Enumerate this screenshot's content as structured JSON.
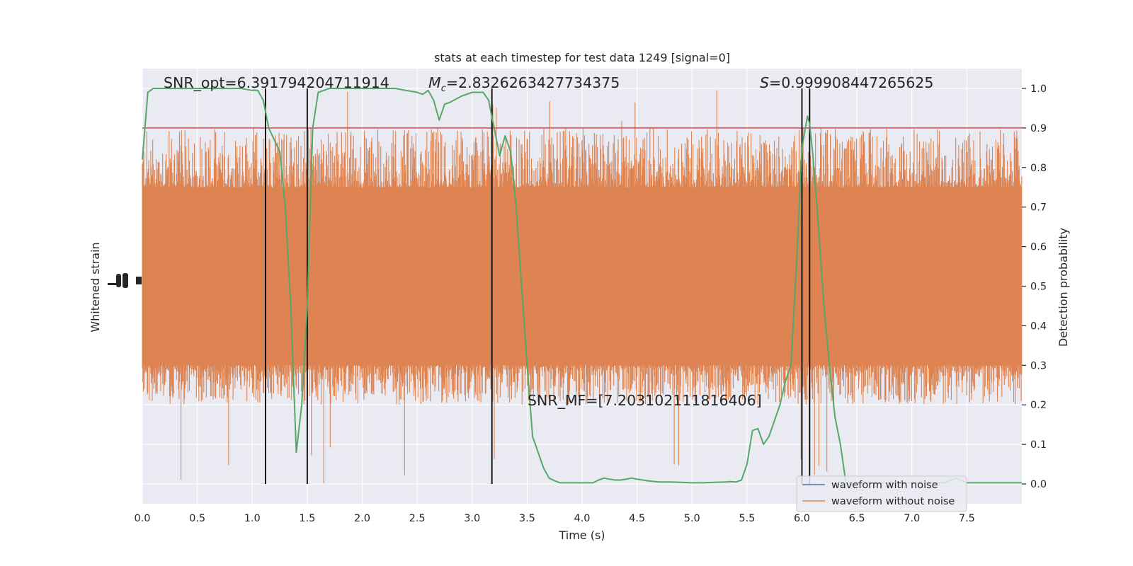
{
  "chart_data": {
    "type": "line",
    "title": "stats at each timestep for test data 1249 [signal=0]",
    "xlabel": "Time (s)",
    "ylabel_left": "Whitened strain",
    "ylabel_right": "Detection probability",
    "xlim": [
      0,
      8
    ],
    "ylim_right": [
      -0.05,
      1.05
    ],
    "grid": true,
    "x_ticks": [
      0.0,
      0.5,
      1.0,
      1.5,
      2.0,
      2.5,
      3.0,
      3.5,
      4.0,
      4.5,
      5.0,
      5.5,
      6.0,
      6.5,
      7.0,
      7.5
    ],
    "x_tick_labels": [
      "0.0",
      "0.5",
      "1.0",
      "1.5",
      "2.0",
      "2.5",
      "3.0",
      "3.5",
      "4.0",
      "4.5",
      "5.0",
      "5.5",
      "6.0",
      "6.5",
      "7.0",
      "7.5"
    ],
    "y_right_ticks": [
      0.0,
      0.1,
      0.2,
      0.3,
      0.4,
      0.5,
      0.6,
      0.7,
      0.8,
      0.9,
      1.0
    ],
    "y_right_tick_labels": [
      "0.0",
      "0.1",
      "0.2",
      "0.3",
      "0.4",
      "0.5",
      "0.6",
      "0.7",
      "0.8",
      "0.9",
      "1.0"
    ],
    "threshold": 0.9,
    "event_lines_x": [
      1.12,
      1.5,
      3.18,
      6.0,
      6.07
    ],
    "annotations": {
      "snr_opt": "SNR_opt=6.391794204711914",
      "mc_symbol": "M",
      "mc_sub": "c",
      "mc_value": "=2.8326263427734375",
      "s_symbol": "S",
      "s_value": "=0.999908447265625",
      "snr_mf": "SNR_MF=[7.203102111816406]"
    },
    "series": [
      {
        "name": "waveform with noise",
        "color": "#4c72b0",
        "description_only": true
      },
      {
        "name": "waveform without noise",
        "color": "#dd8452",
        "noise_band_prob": [
          0.3,
          0.75
        ],
        "typical_spike_range_prob": [
          0.2,
          0.9
        ]
      },
      {
        "name": "detection probability",
        "color": "#55a868",
        "x": [
          0.0,
          0.05,
          0.1,
          0.15,
          0.2,
          0.3,
          0.4,
          0.5,
          0.6,
          0.7,
          0.8,
          0.9,
          1.0,
          1.05,
          1.1,
          1.15,
          1.2,
          1.25,
          1.3,
          1.35,
          1.4,
          1.45,
          1.5,
          1.55,
          1.6,
          1.65,
          1.7,
          1.8,
          1.9,
          2.0,
          2.1,
          2.2,
          2.3,
          2.4,
          2.5,
          2.55,
          2.6,
          2.65,
          2.7,
          2.75,
          2.8,
          2.9,
          3.0,
          3.1,
          3.15,
          3.2,
          3.25,
          3.3,
          3.35,
          3.4,
          3.45,
          3.5,
          3.55,
          3.6,
          3.65,
          3.7,
          3.75,
          3.8,
          3.9,
          4.0,
          4.1,
          4.15,
          4.2,
          4.25,
          4.3,
          4.35,
          4.4,
          4.45,
          4.5,
          4.6,
          4.7,
          4.8,
          4.9,
          5.0,
          5.1,
          5.2,
          5.3,
          5.35,
          5.4,
          5.45,
          5.5,
          5.55,
          5.6,
          5.65,
          5.7,
          5.75,
          5.8,
          5.85,
          5.9,
          5.95,
          6.0,
          6.05,
          6.07,
          6.1,
          6.15,
          6.2,
          6.25,
          6.3,
          6.35,
          6.4,
          6.5,
          6.6,
          6.7,
          6.8,
          6.9,
          7.0,
          7.1,
          7.2,
          7.3,
          7.4,
          7.5,
          7.6,
          7.7,
          7.8,
          7.9,
          8.0
        ],
        "values": [
          0.82,
          0.99,
          1.0,
          1.0,
          1.0,
          1.0,
          1.0,
          1.0,
          1.0,
          1.0,
          1.0,
          1.0,
          0.995,
          0.995,
          0.97,
          0.9,
          0.87,
          0.84,
          0.7,
          0.45,
          0.08,
          0.2,
          0.45,
          0.9,
          0.99,
          0.995,
          1.0,
          1.0,
          1.0,
          1.0,
          1.0,
          1.0,
          1.0,
          0.995,
          0.99,
          0.985,
          0.995,
          0.97,
          0.92,
          0.96,
          0.965,
          0.98,
          0.99,
          0.99,
          0.97,
          0.9,
          0.83,
          0.88,
          0.84,
          0.7,
          0.5,
          0.3,
          0.12,
          0.08,
          0.04,
          0.015,
          0.008,
          0.003,
          0.003,
          0.003,
          0.003,
          0.01,
          0.015,
          0.012,
          0.01,
          0.01,
          0.012,
          0.015,
          0.012,
          0.008,
          0.005,
          0.005,
          0.004,
          0.003,
          0.003,
          0.004,
          0.005,
          0.006,
          0.005,
          0.01,
          0.05,
          0.135,
          0.14,
          0.1,
          0.12,
          0.16,
          0.2,
          0.26,
          0.3,
          0.55,
          0.85,
          0.93,
          0.91,
          0.83,
          0.65,
          0.45,
          0.3,
          0.17,
          0.1,
          0.003,
          0.003,
          0.003,
          0.003,
          0.003,
          0.003,
          0.003,
          0.003,
          0.003,
          0.003,
          0.015,
          0.003,
          0.003,
          0.003,
          0.003,
          0.003,
          0.003
        ]
      }
    ],
    "legend": {
      "placement": "bottom-right",
      "entries": [
        "waveform with noise",
        "waveform without noise"
      ]
    }
  }
}
